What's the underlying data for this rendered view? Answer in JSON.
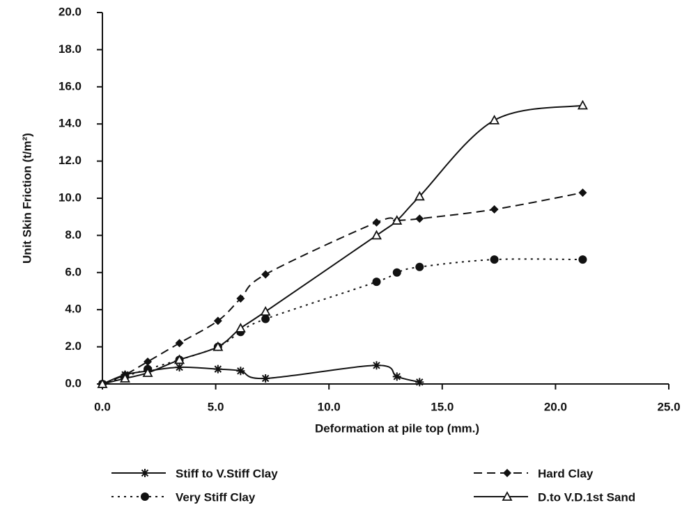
{
  "chart_data": {
    "type": "line",
    "x_label": "Deformation at pile top (mm.)",
    "y_label": "Unit Skin Friction (t/m²)",
    "x": [
      0,
      1.0,
      2.0,
      3.4,
      5.1,
      6.1,
      7.2,
      12.1,
      13.0,
      14.0,
      17.3,
      21.2
    ],
    "series": [
      {
        "name": "Stiff to V.Stiff Clay",
        "color": "#111111",
        "dash": "solid",
        "marker": "asterisk",
        "values": [
          0,
          0.5,
          0.7,
          0.9,
          0.8,
          0.7,
          0.3,
          1.0,
          0.4,
          0.1,
          null,
          null
        ]
      },
      {
        "name": "Hard Clay",
        "color": "#111111",
        "dash": "dashed",
        "marker": "diamond",
        "values": [
          0,
          0.5,
          1.2,
          2.2,
          3.4,
          4.6,
          5.9,
          8.7,
          8.8,
          8.9,
          9.4,
          10.3
        ]
      },
      {
        "name": "Very Stiff Clay",
        "color": "#111111",
        "dash": "dotted",
        "marker": "circle",
        "values": [
          0,
          0.4,
          0.8,
          1.3,
          2.0,
          2.8,
          3.5,
          5.5,
          6.0,
          6.3,
          6.7,
          6.7
        ]
      },
      {
        "name": "D.to V.D.1st Sand",
        "color": "#111111",
        "dash": "solid",
        "marker": "triangle",
        "values": [
          0,
          0.3,
          0.6,
          1.3,
          2.0,
          3.0,
          3.9,
          8.0,
          8.8,
          10.1,
          14.2,
          15.0
        ]
      }
    ],
    "xlim": [
      0,
      25
    ],
    "xticks": [
      {
        "value": 0,
        "label": "0.0"
      },
      {
        "value": 5,
        "label": "5.0"
      },
      {
        "value": 10,
        "label": "10.0"
      },
      {
        "value": 15,
        "label": "15.0"
      },
      {
        "value": 20,
        "label": "20.0"
      },
      {
        "value": 25,
        "label": "25.0"
      }
    ],
    "ylim": [
      0,
      20
    ],
    "yticks": [
      {
        "value": 0,
        "label": "0.0"
      },
      {
        "value": 2,
        "label": "2.0"
      },
      {
        "value": 4,
        "label": "4.0"
      },
      {
        "value": 6,
        "label": "6.0"
      },
      {
        "value": 8,
        "label": "8.0"
      },
      {
        "value": 10,
        "label": "10.0"
      },
      {
        "value": 12,
        "label": "12.0"
      },
      {
        "value": 14,
        "label": "14.0"
      },
      {
        "value": 16,
        "label": "16.0"
      },
      {
        "value": 18,
        "label": "18.0"
      },
      {
        "value": 20,
        "label": "20.0"
      }
    ],
    "grid": false
  }
}
